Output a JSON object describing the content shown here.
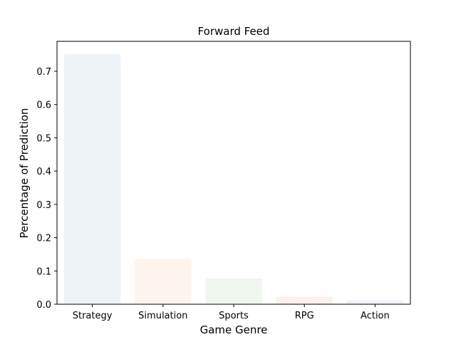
{
  "chart_data": {
    "type": "bar",
    "title": "Forward Feed",
    "xlabel": "Game Genre",
    "ylabel": "Percentage of Prediction",
    "categories": [
      "Strategy",
      "Simulation",
      "Sports",
      "RPG",
      "Action"
    ],
    "values": [
      0.751,
      0.136,
      0.077,
      0.022,
      0.012
    ],
    "colors": [
      "#eef3f8",
      "#fdf4ee",
      "#eef6ee",
      "#fcefee",
      "#f3f0f8"
    ],
    "ylim": [
      0,
      0.79
    ],
    "yticks": [
      0.0,
      0.1,
      0.2,
      0.3,
      0.4,
      0.5,
      0.6,
      0.7
    ],
    "ytick_labels": [
      "0.0",
      "0.1",
      "0.2",
      "0.3",
      "0.4",
      "0.5",
      "0.6",
      "0.7"
    ],
    "grid": false,
    "legend": "none"
  }
}
